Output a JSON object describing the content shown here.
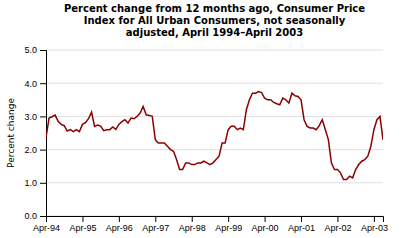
{
  "chart_data": {
    "type": "line",
    "title": "Percent change from 12 months ago, Consumer Price\nIndex for All Urban Consumers, not seasonally\nadjusted, April 1994–April 2003",
    "y_label": "Percent change",
    "color": "#8B0000",
    "grid": true,
    "ylim": [
      0.0,
      5.0
    ],
    "yticks": [
      {
        "value": 0.0,
        "label": "0.0"
      },
      {
        "value": 1.0,
        "label": "1.0"
      },
      {
        "value": 2.0,
        "label": "2.0"
      },
      {
        "value": 3.0,
        "label": "3.0"
      },
      {
        "value": 4.0,
        "label": "4.0"
      },
      {
        "value": 5.0,
        "label": "5.0"
      }
    ],
    "categories": [
      "Apr-94",
      null,
      null,
      null,
      null,
      null,
      null,
      null,
      null,
      null,
      null,
      null,
      "Apr-95",
      null,
      null,
      null,
      null,
      null,
      null,
      null,
      null,
      null,
      null,
      null,
      "Apr-96",
      null,
      null,
      null,
      null,
      null,
      null,
      null,
      null,
      null,
      null,
      null,
      "Apr-97",
      null,
      null,
      null,
      null,
      null,
      null,
      null,
      null,
      null,
      null,
      null,
      "Apr-98",
      null,
      null,
      null,
      null,
      null,
      null,
      null,
      null,
      null,
      null,
      null,
      "Apr-99",
      null,
      null,
      null,
      null,
      null,
      null,
      null,
      null,
      null,
      null,
      null,
      "Apr-00",
      null,
      null,
      null,
      null,
      null,
      null,
      null,
      null,
      null,
      null,
      null,
      "Apr-01",
      null,
      null,
      null,
      null,
      null,
      null,
      null,
      null,
      null,
      null,
      null,
      "Apr-02",
      null,
      null,
      null,
      null,
      null,
      null,
      null,
      null,
      null,
      null,
      null,
      "Apr-03",
      null,
      null,
      null
    ],
    "values": [
      2.36,
      2.95,
      2.99,
      3.04,
      2.85,
      2.76,
      2.72,
      2.56,
      2.6,
      2.54,
      2.6,
      2.54,
      2.76,
      2.81,
      2.93,
      3.13,
      2.7,
      2.74,
      2.71,
      2.57,
      2.6,
      2.6,
      2.68,
      2.61,
      2.76,
      2.84,
      2.9,
      2.8,
      2.95,
      2.93,
      3.0,
      3.1,
      3.3,
      3.05,
      3.03,
      3.0,
      2.3,
      2.2,
      2.2,
      2.2,
      2.1,
      2.0,
      1.95,
      1.7,
      1.4,
      1.4,
      1.6,
      1.6,
      1.55,
      1.55,
      1.6,
      1.6,
      1.65,
      1.6,
      1.55,
      1.6,
      1.7,
      1.8,
      2.2,
      2.2,
      2.6,
      2.7,
      2.7,
      2.6,
      2.65,
      2.6,
      3.2,
      3.5,
      3.7,
      3.7,
      3.75,
      3.72,
      3.55,
      3.5,
      3.5,
      3.42,
      3.38,
      3.35,
      3.55,
      3.5,
      3.4,
      3.7,
      3.62,
      3.6,
      3.5,
      2.9,
      2.7,
      2.65,
      2.65,
      2.6,
      2.72,
      2.9,
      2.6,
      2.3,
      1.6,
      1.4,
      1.4,
      1.3,
      1.1,
      1.1,
      1.2,
      1.15,
      1.4,
      1.55,
      1.65,
      1.7,
      1.8,
      2.1,
      2.6,
      2.9,
      3.0,
      2.3
    ]
  }
}
